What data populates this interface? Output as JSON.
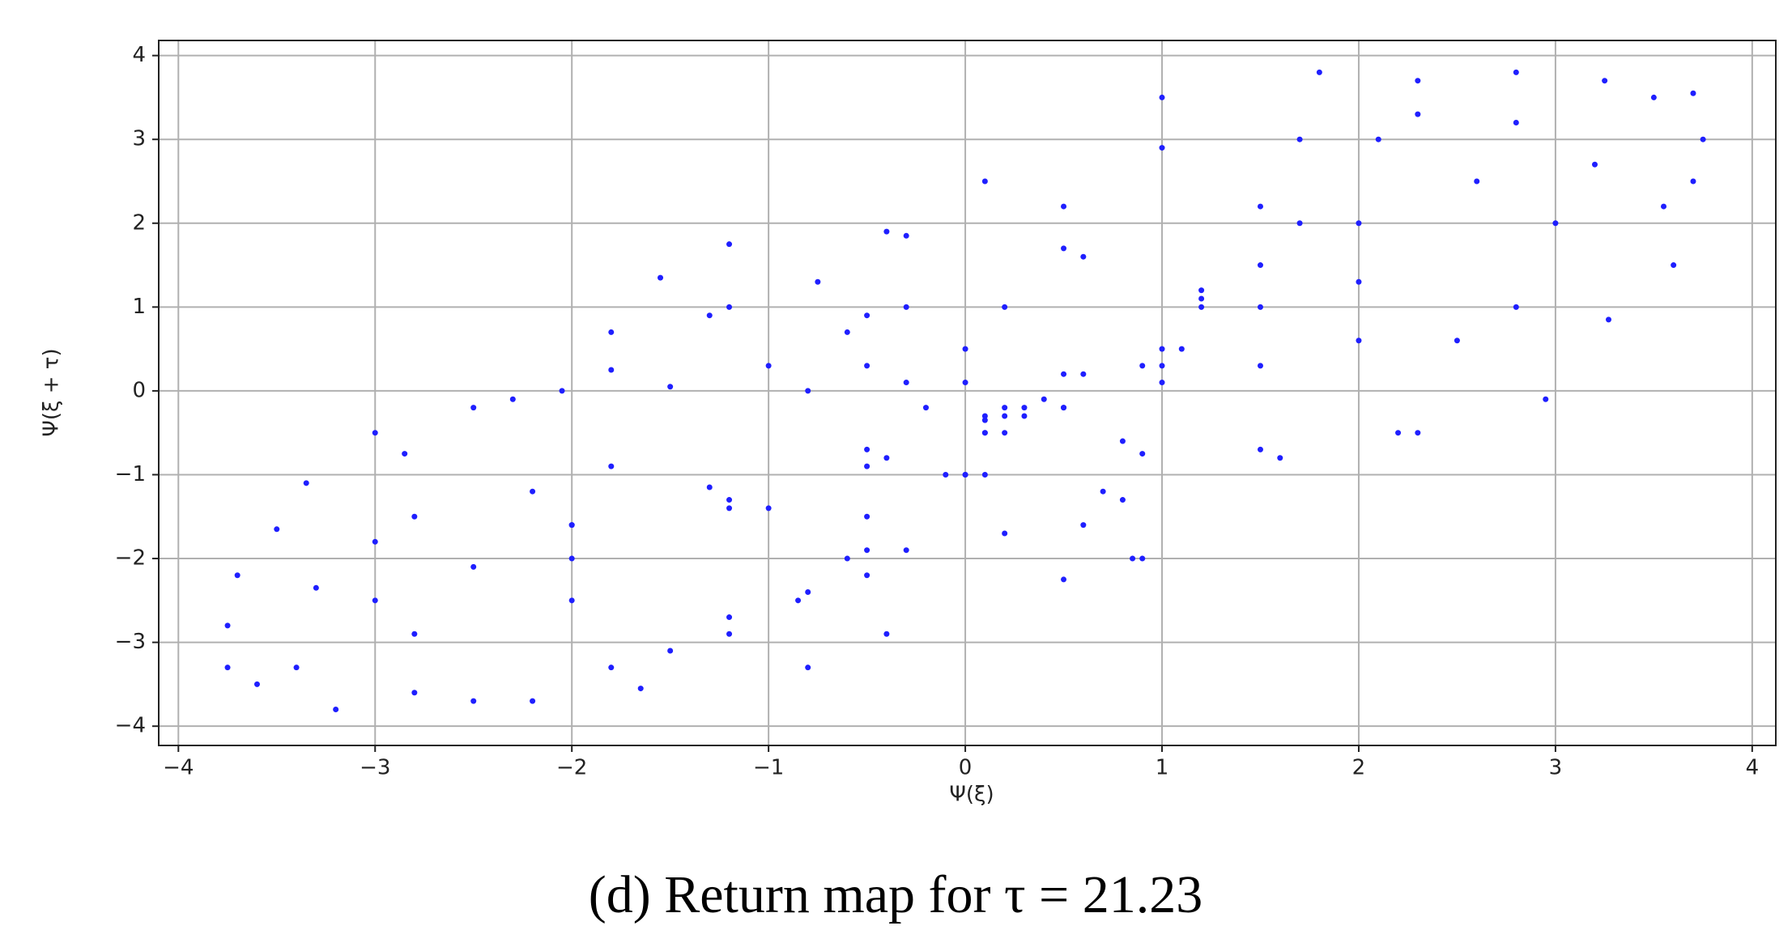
{
  "chart_data": {
    "type": "scatter",
    "x_label": "Ψ(ξ)",
    "y_label": "Ψ(ξ + τ)",
    "caption": "(d) Return map for τ = 21.23",
    "xlim": [
      -4.1,
      4.12
    ],
    "ylim": [
      -4.23,
      4.18
    ],
    "xticks": [
      {
        "value": -4,
        "label": "−4"
      },
      {
        "value": -3,
        "label": "−3"
      },
      {
        "value": -2,
        "label": "−2"
      },
      {
        "value": -1,
        "label": "−1"
      },
      0,
      1,
      2,
      3,
      4
    ],
    "yticks": [
      {
        "value": -4,
        "label": "−4"
      },
      {
        "value": -3,
        "label": "−3"
      },
      {
        "value": -2,
        "label": "−2"
      },
      {
        "value": -1,
        "label": "−1"
      },
      0,
      1,
      2,
      3,
      4
    ],
    "grid": true,
    "series": [
      {
        "color": "#1f1fff",
        "x": [
          -3.35,
          -3.0,
          -2.3,
          -1.5,
          -0.8,
          -0.2,
          0.1,
          -0.5,
          -1.2,
          -2.0,
          -2.8,
          -2.85,
          -2.5,
          -1.8,
          -1.0,
          -0.3,
          0.1,
          -0.5,
          -1.3,
          -2.2,
          -2.05,
          -1.8,
          -1.2,
          -0.5,
          0.0,
          0.2,
          -0.4,
          -1.2,
          -1.8,
          -1.55,
          -1.2,
          -0.4,
          0.5,
          1.2,
          1.1,
          0.4,
          -0.5,
          -1.3,
          -0.75,
          -0.3,
          0.6,
          1.2,
          0.6,
          0.0,
          -0.6,
          0.1,
          0.2,
          0.5,
          1.0,
          1.7,
          1.7,
          1.5,
          1.0,
          0.5,
          2.3,
          2.1,
          1.5,
          0.9,
          0.2,
          -0.3,
          0.1,
          1.0,
          1.8,
          3.55,
          3.0,
          2.0,
          1.0,
          0.3,
          3.6,
          2.8,
          2.0,
          1.0,
          3.27,
          2.5,
          1.5,
          0.5,
          2.95,
          2.3,
          1.5,
          0.8,
          2.2,
          1.6,
          0.9,
          3.7,
          3.75,
          3.7,
          3.2,
          2.6,
          2.0,
          1.2,
          0.5,
          3.25,
          3.5,
          2.8,
          2.8,
          2.3,
          1.5,
          0.3,
          0.8,
          0.9,
          0.6,
          0.5,
          0.2,
          0.0,
          0.7,
          0.85,
          -0.4,
          -0.5,
          -0.1,
          0.2,
          -0.3,
          -0.8,
          -0.85,
          -0.5,
          0.1,
          -1.65,
          -1.2,
          -0.6,
          0.0,
          -2.2,
          -1.5,
          -0.8,
          -3.75,
          -3.6,
          -3.2,
          -2.5,
          -1.8,
          -1.2,
          -0.5,
          0.1,
          -2.8,
          -3.4,
          -2.8,
          -2.0,
          -3.75,
          -3.0,
          -2.0,
          -1.0,
          -3.7,
          -3.3,
          -2.5,
          -3.5,
          -3.0,
          -2.0
        ],
        "values": [
          -1.1,
          -0.5,
          -0.1,
          0.05,
          0.0,
          -0.2,
          -0.35,
          -0.9,
          -1.4,
          -1.6,
          -1.5,
          -0.75,
          -0.2,
          0.25,
          0.3,
          0.1,
          -0.3,
          -0.7,
          -1.15,
          -1.2,
          0,
          0.7,
          1.0,
          0.9,
          0.5,
          -0.2,
          -0.8,
          -1.3,
          -0.9,
          1.35,
          1.75,
          1.9,
          1.7,
          1.1,
          0.5,
          -0.1,
          0.3,
          0.9,
          1.3,
          1.85,
          1.6,
          1.0,
          0.2,
          0.1,
          0.7,
          -0.5,
          1.0,
          2.2,
          2.9,
          3.0,
          2.0,
          1.0,
          0.3,
          -0.2,
          3.7,
          3.0,
          1.5,
          0.3,
          -0.3,
          1.0,
          2.5,
          3.5,
          3.8,
          2.2,
          2.0,
          1.3,
          0.5,
          -0.3,
          1.5,
          1.0,
          0.6,
          0.1,
          0.85,
          0.6,
          0.3,
          -0.2,
          -0.1,
          -0.5,
          -0.7,
          -0.6,
          -0.5,
          -0.8,
          -0.75,
          3.55,
          3.0,
          2.5,
          2.7,
          2.5,
          2.0,
          1.2,
          0.2,
          3.7,
          3.5,
          3.2,
          3.8,
          3.3,
          2.2,
          -0.2,
          -1.3,
          -2.0,
          -1.6,
          -2.25,
          -1.7,
          -1.0,
          -1.2,
          -2.0,
          -2.9,
          -2.2,
          -1.0,
          -0.5,
          -1.9,
          -3.3,
          -2.5,
          -1.5,
          -0.5,
          -3.55,
          -2.9,
          -2.0,
          -1.0,
          -3.7,
          -3.1,
          -2.4,
          -3.3,
          -3.5,
          -3.8,
          -3.7,
          -3.3,
          -2.7,
          -1.9,
          -1.0,
          -3.6,
          -3.3,
          -2.9,
          -2.5,
          -2.8,
          -2.5,
          -2.0,
          -1.4,
          -2.2,
          -2.35,
          -2.1,
          -1.65,
          -1.8,
          -1.6
        ]
      }
    ]
  }
}
